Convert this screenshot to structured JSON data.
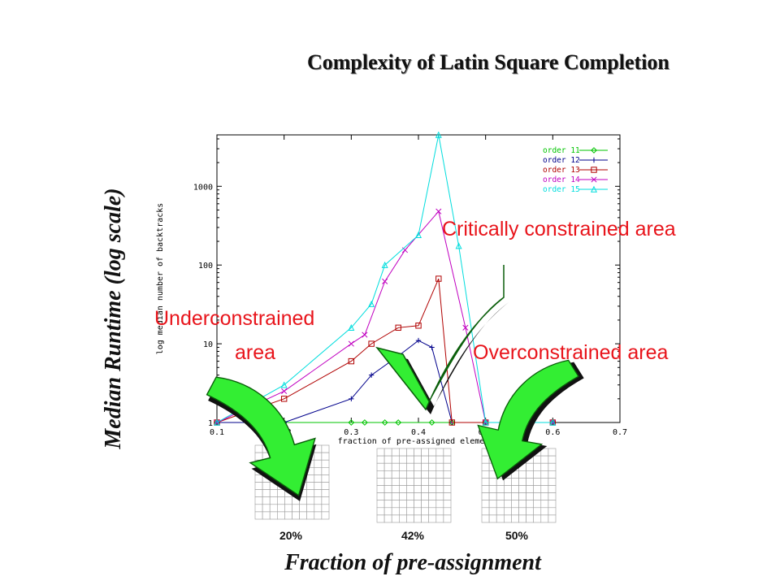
{
  "slide": {
    "title": "Complexity of Latin Square Completion",
    "y_label": "Median Runtime (log scale)",
    "x_label": "Fraction of pre-assignment"
  },
  "annotations": {
    "underconstrained_line1": "Underconstrained",
    "underconstrained_line2": "area",
    "critical": "Critically constrained area",
    "overconstrained": "Overconstrained area"
  },
  "colors": {
    "annotation_text": "#e8141b",
    "arrow_fill": "#33ee33",
    "arrow_shadow": "#111111"
  },
  "chart_data": {
    "type": "line",
    "xlabel": "fraction of pre-assigned elements",
    "ylabel": "log median number of backtracks",
    "x_ticks": [
      0.1,
      0.2,
      0.3,
      0.4,
      0.5,
      0.6,
      0.7
    ],
    "x_tick_labels": [
      "0.1",
      "0.2",
      "0.3",
      "0.4",
      "0.5",
      "0.6",
      "0.7"
    ],
    "y_ticks": [
      1,
      10,
      100,
      1000
    ],
    "y_tick_labels": [
      "1",
      "10",
      "100",
      "1000"
    ],
    "xlim": [
      0.1,
      0.7
    ],
    "ylim": [
      1,
      4500
    ],
    "y_scale": "log",
    "grid": false,
    "legend_position": "top-right",
    "series": [
      {
        "name": "order 11",
        "color": "#00c400",
        "marker": "diamond",
        "points": [
          [
            0.1,
            1
          ],
          [
            0.2,
            1
          ],
          [
            0.3,
            1
          ],
          [
            0.32,
            1
          ],
          [
            0.35,
            1
          ],
          [
            0.37,
            1
          ],
          [
            0.42,
            1
          ],
          [
            0.45,
            1
          ],
          [
            0.5,
            1
          ],
          [
            0.6,
            1
          ]
        ]
      },
      {
        "name": "order 12",
        "color": "#00008b",
        "marker": "plus",
        "points": [
          [
            0.1,
            1
          ],
          [
            0.2,
            1
          ],
          [
            0.3,
            2
          ],
          [
            0.33,
            4
          ],
          [
            0.37,
            7
          ],
          [
            0.4,
            11
          ],
          [
            0.42,
            9
          ],
          [
            0.45,
            1
          ],
          [
            0.5,
            1
          ],
          [
            0.6,
            1
          ]
        ]
      },
      {
        "name": "order 13",
        "color": "#b00000",
        "marker": "square",
        "points": [
          [
            0.1,
            1
          ],
          [
            0.2,
            2
          ],
          [
            0.3,
            6
          ],
          [
            0.33,
            10
          ],
          [
            0.37,
            16
          ],
          [
            0.4,
            17
          ],
          [
            0.43,
            67
          ],
          [
            0.45,
            1
          ],
          [
            0.5,
            1
          ],
          [
            0.6,
            1
          ]
        ]
      },
      {
        "name": "order 14",
        "color": "#c000c0",
        "marker": "x",
        "points": [
          [
            0.1,
            1
          ],
          [
            0.2,
            2.5
          ],
          [
            0.3,
            10
          ],
          [
            0.32,
            13
          ],
          [
            0.35,
            62
          ],
          [
            0.38,
            155
          ],
          [
            0.43,
            480
          ],
          [
            0.47,
            16
          ],
          [
            0.5,
            1
          ],
          [
            0.6,
            1
          ]
        ]
      },
      {
        "name": "order 15",
        "color": "#00dddd",
        "marker": "triangle",
        "points": [
          [
            0.1,
            1
          ],
          [
            0.2,
            3
          ],
          [
            0.3,
            16
          ],
          [
            0.33,
            32
          ],
          [
            0.35,
            100
          ],
          [
            0.4,
            240
          ],
          [
            0.43,
            4500
          ],
          [
            0.46,
            175
          ],
          [
            0.5,
            1
          ],
          [
            0.6,
            1
          ]
        ]
      }
    ]
  },
  "grids": [
    {
      "label": "20%",
      "cells": [
        [
          0,
          0,
          0,
          0,
          0,
          0,
          0,
          0,
          0,
          0
        ],
        [
          0,
          0,
          0,
          0,
          0,
          0,
          0,
          0,
          0,
          0
        ],
        [
          0,
          0,
          0,
          0,
          0,
          0,
          0,
          0,
          0,
          0
        ],
        [
          0,
          0,
          0,
          0,
          0,
          0,
          0,
          0,
          0,
          0
        ],
        [
          0,
          0,
          0,
          0,
          0,
          0,
          0,
          0,
          0,
          0
        ],
        [
          0,
          0,
          0,
          0,
          0,
          0,
          0,
          0,
          0,
          0
        ],
        [
          0,
          0,
          0,
          0,
          0,
          0,
          0,
          0,
          0,
          0
        ],
        [
          0,
          0,
          0,
          0,
          0,
          0,
          0,
          0,
          0,
          0
        ],
        [
          0,
          0,
          0,
          0,
          0,
          0,
          0,
          0,
          0,
          0
        ],
        [
          0,
          0,
          0,
          0,
          0,
          0,
          0,
          0,
          0,
          0
        ]
      ]
    },
    {
      "label": "42%",
      "cells": [
        [
          0,
          0,
          0,
          0,
          0,
          0,
          0,
          0,
          0,
          0
        ],
        [
          0,
          0,
          0,
          0,
          0,
          0,
          0,
          0,
          0,
          0
        ],
        [
          0,
          0,
          0,
          0,
          0,
          0,
          0,
          0,
          0,
          0
        ],
        [
          0,
          0,
          0,
          0,
          0,
          0,
          0,
          0,
          0,
          0
        ],
        [
          0,
          0,
          0,
          0,
          0,
          0,
          0,
          0,
          0,
          0
        ],
        [
          0,
          0,
          0,
          0,
          0,
          0,
          0,
          0,
          0,
          0
        ],
        [
          0,
          0,
          0,
          0,
          0,
          0,
          0,
          0,
          0,
          0
        ],
        [
          0,
          0,
          0,
          0,
          0,
          0,
          0,
          0,
          0,
          0
        ],
        [
          0,
          0,
          0,
          0,
          0,
          0,
          0,
          0,
          0,
          0
        ],
        [
          0,
          0,
          0,
          0,
          0,
          0,
          0,
          0,
          0,
          0
        ]
      ]
    },
    {
      "label": "50%",
      "cells": [
        [
          0,
          0,
          0,
          0,
          0,
          0,
          0,
          0,
          0,
          0
        ],
        [
          0,
          0,
          0,
          0,
          0,
          0,
          0,
          0,
          0,
          0
        ],
        [
          0,
          0,
          0,
          0,
          0,
          0,
          0,
          0,
          0,
          0
        ],
        [
          0,
          0,
          0,
          0,
          0,
          0,
          0,
          0,
          0,
          0
        ],
        [
          0,
          0,
          0,
          0,
          0,
          0,
          0,
          0,
          0,
          0
        ],
        [
          0,
          0,
          0,
          0,
          0,
          0,
          0,
          0,
          0,
          0
        ],
        [
          0,
          0,
          0,
          0,
          0,
          0,
          0,
          0,
          0,
          0
        ],
        [
          0,
          0,
          0,
          0,
          0,
          0,
          0,
          0,
          0,
          0
        ],
        [
          0,
          0,
          0,
          0,
          0,
          0,
          0,
          0,
          0,
          0
        ],
        [
          0,
          0,
          0,
          0,
          0,
          0,
          0,
          0,
          0,
          0
        ]
      ]
    }
  ],
  "palette": [
    "#ffffff",
    "#000000",
    "#ff00ff",
    "#00ff00",
    "#ffff00",
    "#00ffff",
    "#0000ff",
    "#ff0000",
    "#ffb6c1",
    "#c0c0c0"
  ]
}
